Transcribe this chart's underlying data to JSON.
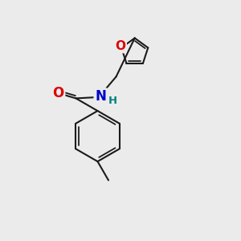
{
  "background_color": "#ebebeb",
  "bond_color": "#1a1a1a",
  "bond_width": 1.5,
  "atom_colors": {
    "O": "#dd0000",
    "N": "#0000cc",
    "H": "#008080",
    "C": "#1a1a1a"
  },
  "font_size_atom": 11,
  "font_size_h": 9.5
}
